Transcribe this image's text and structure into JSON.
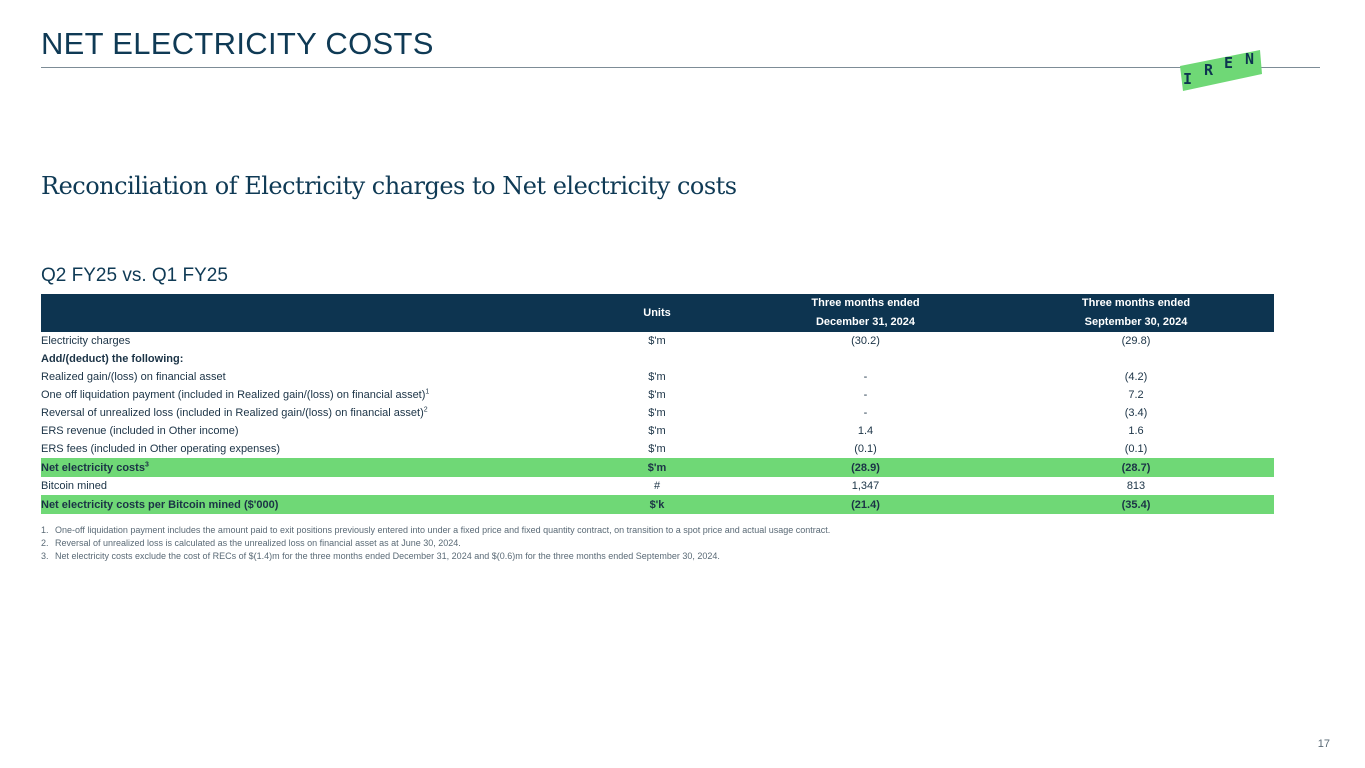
{
  "header": {
    "title": "NET ELECTRICITY COSTS",
    "logo_letters": [
      "I",
      "R",
      "E",
      "N"
    ],
    "logo_color": "#6fd876"
  },
  "subtitle": "Reconciliation of Electricity charges to Net electricity costs",
  "section_heading": "Q2 FY25 vs. Q1 FY25",
  "table": {
    "columns": {
      "units": "Units",
      "col1_line1": "Three months ended",
      "col1_line2": "December 31, 2024",
      "col2_line1": "Three months ended",
      "col2_line2": "September 30, 2024"
    },
    "rows": [
      {
        "label": "Electricity charges",
        "sup": "",
        "units": "$'m",
        "q2": "(30.2)",
        "q1": "(29.8)"
      },
      {
        "label": "Add/(deduct) the following:",
        "sup": "",
        "units": "",
        "q2": "",
        "q1": ""
      },
      {
        "label": "Realized gain/(loss) on financial asset",
        "sup": "",
        "units": "$'m",
        "q2": "-",
        "q1": "(4.2)"
      },
      {
        "label": "One off liquidation payment (included in Realized gain/(loss) on financial asset)",
        "sup": "1",
        "units": "$'m",
        "q2": "-",
        "q1": "7.2"
      },
      {
        "label": "Reversal of unrealized loss (included in Realized gain/(loss) on financial asset)",
        "sup": "2",
        "units": "$'m",
        "q2": "-",
        "q1": "(3.4)"
      },
      {
        "label": "ERS revenue (included in Other income)",
        "sup": "",
        "units": "$'m",
        "q2": "1.4",
        "q1": "1.6"
      },
      {
        "label": "ERS fees (included in Other operating expenses)",
        "sup": "",
        "units": "$'m",
        "q2": "(0.1)",
        "q1": "(0.1)"
      },
      {
        "label": "Net electricity costs",
        "sup": "3",
        "units": "$'m",
        "q2": "(28.9)",
        "q1": "(28.7)"
      },
      {
        "label": "Bitcoin mined",
        "sup": "",
        "units": "#",
        "q2": "1,347",
        "q1": "813"
      },
      {
        "label": "Net electricity costs per Bitcoin mined ($'000)",
        "sup": "",
        "units": "$'k",
        "q2": "(21.4)",
        "q1": "(35.4)"
      }
    ]
  },
  "footnotes": [
    {
      "num": "1.",
      "text": "One-off liquidation payment includes the amount paid to exit positions previously entered into under a fixed price and fixed quantity contract, on transition to a spot price and actual usage contract."
    },
    {
      "num": "2.",
      "text": "Reversal of unrealized loss is calculated as the unrealized loss on financial asset as at June 30, 2024."
    },
    {
      "num": "3.",
      "text": "Net electricity costs exclude the cost of RECs of $(1.4)m for the three months ended December 31, 2024 and $(0.6)m for the three months ended September 30, 2024."
    }
  ],
  "page_number": "17",
  "colors": {
    "header_navy": "#0d3450",
    "highlight_green": "#6fd876",
    "title_blue": "#0f3a55"
  }
}
